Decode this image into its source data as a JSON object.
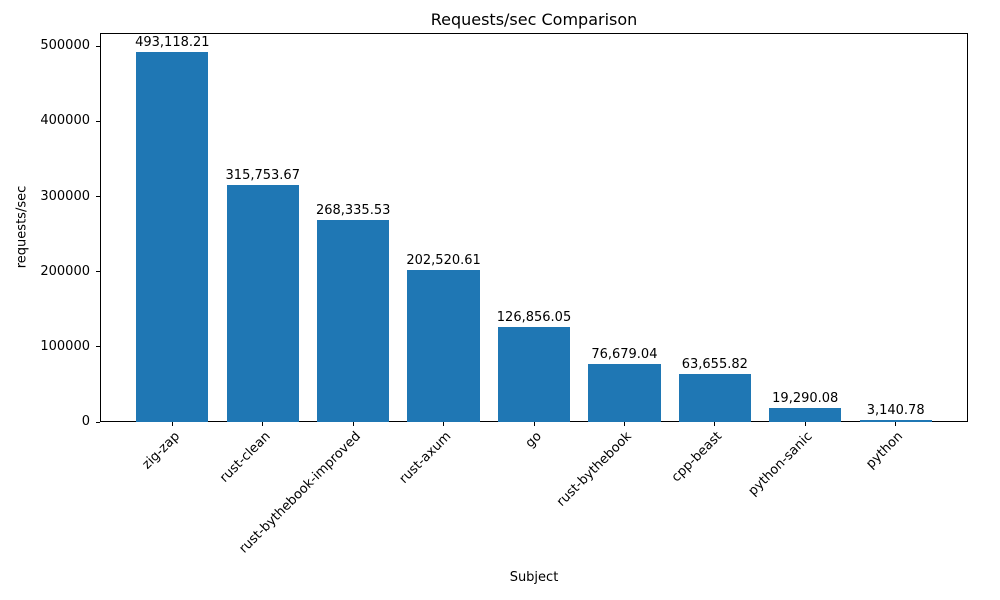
{
  "chart_data": {
    "type": "bar",
    "title": "Requests/sec Comparison",
    "xlabel": "Subject",
    "ylabel": "requests/sec",
    "categories": [
      "zig-zap",
      "rust-clean",
      "rust-bythebook-improved",
      "rust-axum",
      "go",
      "rust-bythebook",
      "cpp-beast",
      "python-sanic",
      "python"
    ],
    "values": [
      493118.21,
      315753.67,
      268335.53,
      202520.61,
      126856.05,
      76679.04,
      63655.82,
      19290.08,
      3140.78
    ],
    "value_labels": [
      "493,118.21",
      "315,753.67",
      "268,335.53",
      "202,520.61",
      "126,856.05",
      "76,679.04",
      "63,655.82",
      "19,290.08",
      "3,140.78"
    ],
    "yticks": [
      0,
      100000,
      200000,
      300000,
      400000,
      500000
    ],
    "ytick_labels": [
      "0",
      "100000",
      "200000",
      "300000",
      "400000",
      "500000"
    ],
    "ylim": [
      0,
      517774
    ],
    "bar_color": "#1f77b4",
    "axis_color": "#000000",
    "grid": false,
    "legend": false
  }
}
